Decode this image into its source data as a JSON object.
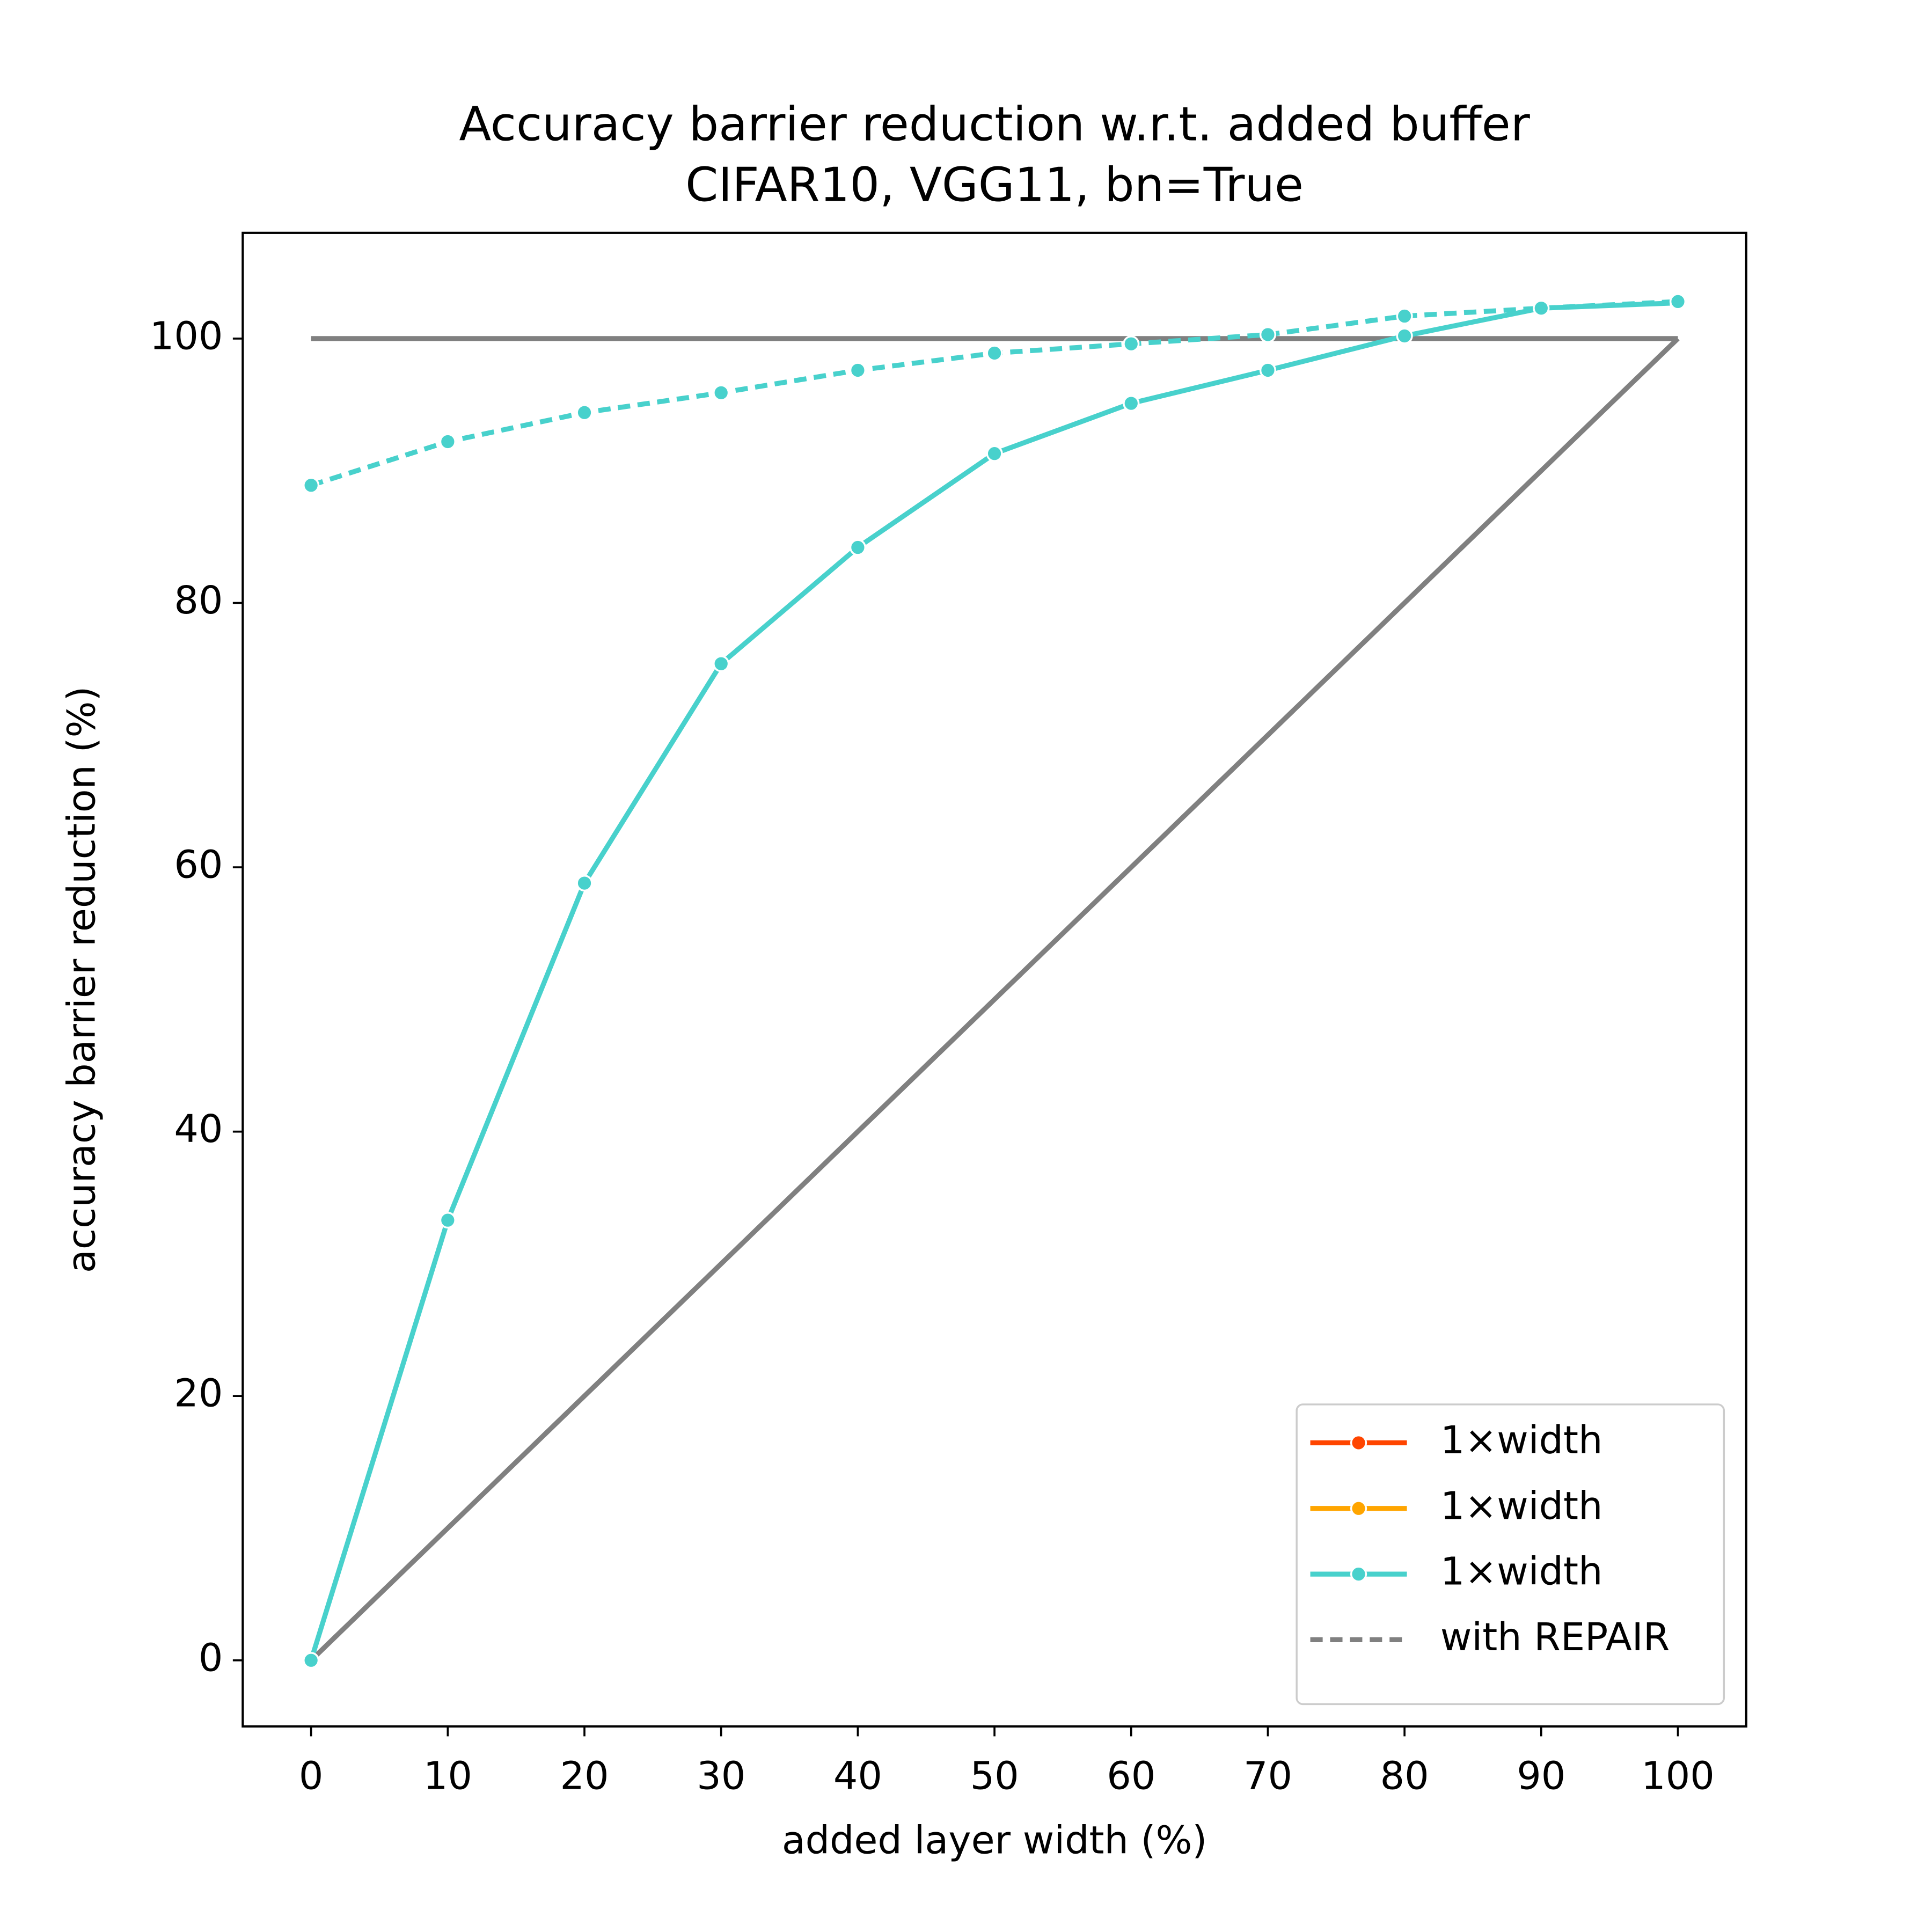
{
  "chart_data": {
    "type": "line",
    "title": "Accuracy barrier reduction w.r.t. added buffer",
    "subtitle": "CIFAR10, VGG11, bn=True",
    "x_label": "added layer width (%)",
    "y_label": "accuracy barrier reduction (%)",
    "x": [
      0,
      10,
      20,
      30,
      40,
      50,
      60,
      70,
      80,
      90,
      100
    ],
    "series": [
      {
        "color": "#808080",
        "dash": false,
        "markers": false,
        "values": [
          100,
          100,
          100,
          100,
          100,
          100,
          100,
          100,
          100,
          100,
          100
        ]
      },
      {
        "color": "#808080",
        "dash": false,
        "markers": false,
        "values": [
          0,
          10,
          20,
          30,
          40,
          50,
          60,
          70,
          80,
          90,
          100
        ]
      },
      {
        "color": "#48d1cc",
        "dash": false,
        "markers": true,
        "values": [
          0,
          33.3,
          58.8,
          75.4,
          84.2,
          91.3,
          95.1,
          97.6,
          100.2,
          102.3,
          102.7
        ]
      },
      {
        "color": "#48d1cc",
        "dash": true,
        "markers": true,
        "values": [
          88.9,
          92.2,
          94.4,
          95.9,
          97.6,
          98.9,
          99.6,
          100.3,
          101.7,
          102.3,
          102.8
        ]
      }
    ],
    "legend": [
      {
        "label": "1×width",
        "color": "#ff4500",
        "dash": false,
        "markers": true
      },
      {
        "label": "1×width",
        "color": "#ffa500",
        "dash": false,
        "markers": true
      },
      {
        "label": "1×width",
        "color": "#48d1cc",
        "dash": false,
        "markers": true
      },
      {
        "label": "with REPAIR",
        "color": "#808080",
        "dash": true,
        "markers": false
      }
    ],
    "legend_position": "lower right",
    "xlim": [
      -5,
      105
    ],
    "ylim": [
      -5,
      108
    ],
    "xticks": [
      0,
      10,
      20,
      30,
      40,
      50,
      60,
      70,
      80,
      90,
      100
    ],
    "yticks": [
      0,
      20,
      40,
      60,
      80,
      100
    ],
    "grid": false
  }
}
